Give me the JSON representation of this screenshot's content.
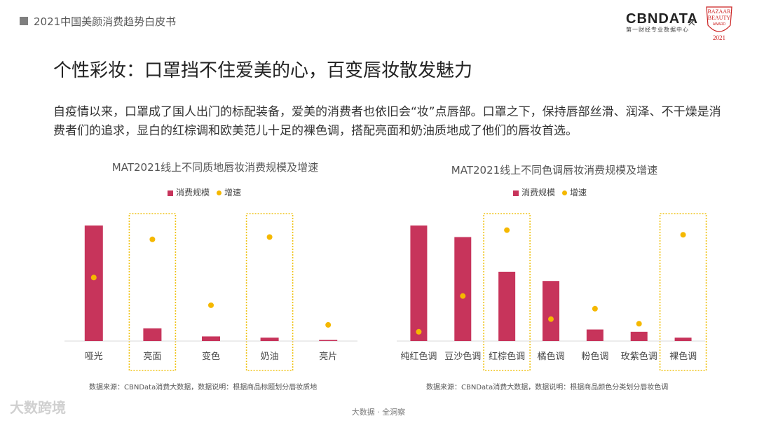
{
  "header": {
    "report_title": "2021中国美颜消费趋势白皮书"
  },
  "logos": {
    "cbn_main": "CBNDATA",
    "cbn_sub": "第一财经专业数据中心",
    "times": "×",
    "bazaar_top": "BAZAAR",
    "bazaar_mid": "BEAUTY",
    "bazaar_award": "AWARD",
    "bazaar_year": "2021"
  },
  "slide": {
    "title": "个性彩妆：口罩挡不住爱美的心，百变唇妆散发魅力",
    "paragraph": "自疫情以来，口罩成了国人出门的标配装备，爱美的消费者也依旧会“妆”点唇部。口罩之下，保持唇部丝滑、润泽、不干燥是消费者们的追求，显白的红棕调和欧美范儿十足的裸色调，搭配亮面和奶油质地成了他们的唇妆首选。"
  },
  "chart_data": [
    {
      "type": "bar",
      "title": "MAT2021线上不同质地唇妆消费规模及增速",
      "categories": [
        "哑光",
        "亮面",
        "变色",
        "奶油",
        "亮片"
      ],
      "series": [
        {
          "name": "消费规模",
          "type": "bar",
          "values": [
            100,
            11,
            4,
            3,
            1
          ]
        },
        {
          "name": "增速",
          "type": "scatter",
          "values": [
            55,
            88,
            31,
            90,
            14
          ]
        }
      ],
      "highlighted": [
        "亮面",
        "奶油"
      ],
      "ylim": [
        0,
        100
      ],
      "source": "数据来源：CBNData消费大数据，数据说明：根据商品标题划分唇妆质地"
    },
    {
      "type": "bar",
      "title": "MAT2021线上不同色调唇妆消费规模及增速",
      "categories": [
        "纯红色调",
        "豆沙色调",
        "红棕色调",
        "橘色调",
        "粉色调",
        "玫紫色调",
        "裸色调"
      ],
      "series": [
        {
          "name": "消费规模",
          "type": "bar",
          "values": [
            100,
            90,
            60,
            52,
            10,
            8,
            3
          ]
        },
        {
          "name": "增速",
          "type": "scatter",
          "values": [
            8,
            39,
            96,
            19,
            28,
            15,
            92
          ]
        }
      ],
      "highlighted": [
        "红棕色调",
        "裸色调"
      ],
      "ylim": [
        0,
        100
      ],
      "source": "数据来源：CBNData消费大数据，数据说明：根据商品颜色分类划分唇妆色调"
    }
  ],
  "footer": {
    "tagline": "大数据 · 全洞察",
    "watermark": "大数跨境"
  },
  "colors": {
    "bar": "#c7345b",
    "dot": "#f5b800",
    "highlight": "#f0c419"
  }
}
